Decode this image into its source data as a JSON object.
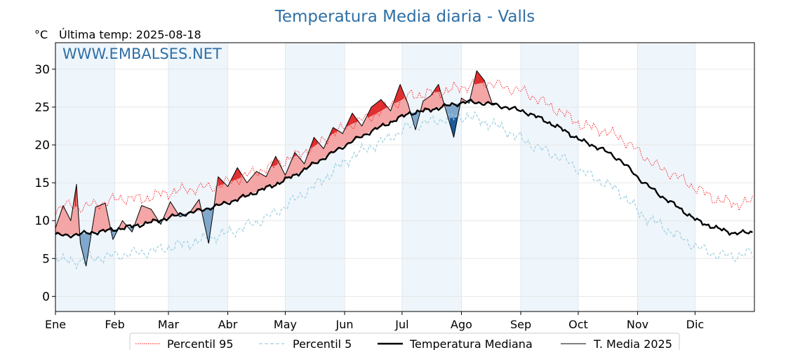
{
  "header": {
    "title": "Temperatura Media diaria - Valls",
    "unit_label": "°C",
    "last_temp_label": "Última temp: 2025-08-18",
    "watermark": "WWW.EMBALSES.NET"
  },
  "chart_data": {
    "type": "line",
    "title": "Temperatura Media diaria - Valls",
    "ylabel": "°C",
    "xlabel": "",
    "ylim": [
      -2,
      33.5
    ],
    "xlim": [
      0,
      365
    ],
    "grid": true,
    "yticks": [
      0,
      5,
      10,
      15,
      20,
      25,
      30
    ],
    "ytick_labels": [
      "0",
      "5",
      "10",
      "15",
      "20",
      "25",
      "30"
    ],
    "months": [
      {
        "label": "Ene",
        "start": 0
      },
      {
        "label": "Feb",
        "start": 31
      },
      {
        "label": "Mar",
        "start": 59
      },
      {
        "label": "Abr",
        "start": 90
      },
      {
        "label": "May",
        "start": 120
      },
      {
        "label": "Jun",
        "start": 151
      },
      {
        "label": "Jul",
        "start": 181
      },
      {
        "label": "Ago",
        "start": 212
      },
      {
        "label": "Sep",
        "start": 243
      },
      {
        "label": "Oct",
        "start": 273
      },
      {
        "label": "Nov",
        "start": 304
      },
      {
        "label": "Dic",
        "start": 334
      }
    ],
    "legend_position": "bottom",
    "colors": {
      "p95": "#ff0000",
      "p5": "#9fcfe0",
      "median": "#000000",
      "current": "#000000",
      "above_fill": "#f4a5a5",
      "above_fill_strong": "#e03030",
      "below_fill": "#7fa8cc",
      "below_fill_strong": "#1a5a9a",
      "band": "#eef5fb"
    },
    "series": [
      {
        "name": "Percentil 95",
        "style": "dotted",
        "x": [
          0,
          5,
          15,
          25,
          35,
          45,
          55,
          65,
          75,
          85,
          95,
          105,
          115,
          125,
          135,
          145,
          155,
          165,
          175,
          185,
          195,
          205,
          215,
          225,
          235,
          245,
          255,
          265,
          275,
          285,
          295,
          305,
          315,
          325,
          335,
          345,
          355,
          364
        ],
        "values": [
          11.5,
          12.0,
          11.8,
          12.4,
          13.0,
          12.8,
          13.5,
          14.0,
          14.3,
          14.6,
          15.5,
          16.5,
          17.3,
          18.5,
          19.8,
          21.5,
          22.8,
          23.8,
          25.2,
          26.5,
          26.8,
          27.2,
          27.8,
          28.3,
          27.6,
          27.0,
          25.6,
          24.2,
          22.6,
          22.0,
          21.0,
          19.0,
          17.0,
          15.8,
          14.2,
          12.8,
          12.2,
          12.5
        ]
      },
      {
        "name": "Percentil 5",
        "style": "dashed",
        "x": [
          0,
          5,
          15,
          25,
          35,
          45,
          55,
          65,
          75,
          85,
          95,
          105,
          115,
          125,
          135,
          145,
          155,
          165,
          175,
          185,
          195,
          205,
          215,
          225,
          235,
          245,
          255,
          265,
          275,
          285,
          295,
          305,
          315,
          325,
          335,
          345,
          355,
          364
        ],
        "values": [
          5.5,
          4.5,
          4.8,
          5.2,
          5.5,
          5.8,
          6.2,
          6.8,
          7.3,
          8.0,
          8.8,
          9.8,
          11.0,
          12.8,
          14.5,
          16.5,
          18.5,
          19.8,
          21.0,
          22.5,
          23.0,
          23.5,
          23.8,
          23.0,
          22.0,
          20.5,
          19.3,
          18.2,
          16.5,
          15.2,
          13.8,
          11.0,
          9.5,
          8.0,
          6.5,
          5.5,
          5.3,
          5.8
        ]
      },
      {
        "name": "Temperatura Mediana",
        "style": "thick",
        "x": [
          0,
          5,
          15,
          25,
          35,
          45,
          55,
          65,
          75,
          85,
          95,
          105,
          115,
          125,
          135,
          145,
          155,
          165,
          175,
          185,
          195,
          205,
          215,
          225,
          235,
          245,
          255,
          265,
          275,
          285,
          295,
          305,
          315,
          325,
          335,
          345,
          355,
          364
        ],
        "values": [
          8.2,
          8.0,
          8.3,
          8.6,
          9.0,
          9.5,
          10.1,
          10.8,
          11.3,
          12.0,
          12.8,
          13.8,
          14.8,
          16.0,
          17.5,
          19.0,
          20.5,
          21.8,
          23.0,
          24.2,
          24.6,
          25.2,
          25.7,
          25.5,
          25.0,
          24.4,
          23.3,
          22.0,
          20.5,
          19.5,
          18.0,
          15.5,
          13.5,
          11.8,
          10.0,
          9.0,
          8.3,
          8.5
        ]
      },
      {
        "name": "T. Media 2025",
        "style": "thin",
        "x": [
          0,
          4,
          8,
          11,
          13,
          16,
          21,
          26,
          30,
          35,
          40,
          45,
          50,
          55,
          60,
          65,
          70,
          75,
          80,
          85,
          90,
          95,
          100,
          105,
          110,
          115,
          120,
          125,
          130,
          135,
          140,
          145,
          150,
          155,
          160,
          165,
          170,
          175,
          180,
          184,
          188,
          192,
          196,
          200,
          204,
          208,
          212,
          216,
          220,
          224,
          228,
          230
        ],
        "values": [
          9.0,
          12.0,
          10.0,
          14.8,
          7.0,
          4.0,
          11.8,
          12.3,
          7.5,
          10.0,
          8.5,
          12.0,
          11.5,
          9.5,
          12.5,
          10.5,
          11.0,
          12.8,
          7.0,
          15.8,
          14.5,
          17.0,
          15.0,
          16.5,
          15.8,
          18.5,
          16.0,
          19.0,
          17.5,
          21.0,
          19.5,
          22.3,
          21.5,
          24.2,
          22.5,
          25.0,
          26.0,
          24.5,
          28.0,
          25.5,
          22.0,
          25.8,
          26.5,
          28.0,
          24.5,
          21.0,
          26.2,
          25.5,
          29.8,
          28.5,
          25.5,
          25.5
        ]
      }
    ]
  },
  "legend": {
    "items": [
      {
        "label": "Percentil 95"
      },
      {
        "label": "Percentil 5"
      },
      {
        "label": "Temperatura Mediana"
      },
      {
        "label": "T. Media 2025"
      }
    ]
  }
}
